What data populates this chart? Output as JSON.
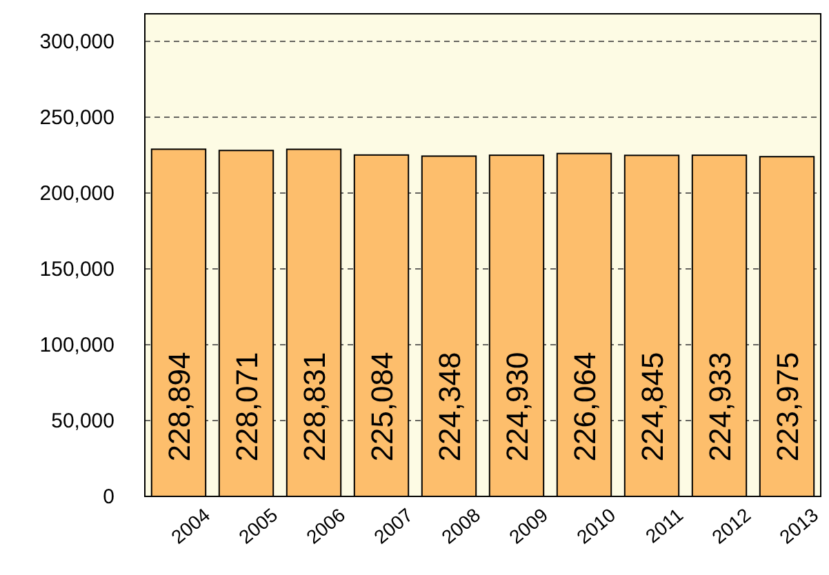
{
  "chart_data": {
    "type": "bar",
    "categories": [
      "2004",
      "2005",
      "2006",
      "2007",
      "2008",
      "2009",
      "2010",
      "2011",
      "2012",
      "2013"
    ],
    "values": [
      228894,
      228071,
      228831,
      225084,
      224348,
      224930,
      226064,
      224845,
      224933,
      223975
    ],
    "color": "#fdbe6c",
    "ylim": [
      0,
      300000
    ],
    "yticks": [
      0,
      {
        "value": 50000,
        "label": "50,000"
      },
      {
        "value": 100000,
        "label": "100,000"
      },
      {
        "value": 150000,
        "label": "150,000"
      },
      {
        "value": 200000,
        "label": "200,000"
      },
      {
        "value": 250000,
        "label": "250,000"
      },
      {
        "value": 300000,
        "label": "300,000"
      }
    ],
    "value_labels": [
      "228,894",
      "228,071",
      "228,831",
      "225,084",
      "224,348",
      "224,930",
      "226,064",
      "224,845",
      "224,933",
      "223,975"
    ],
    "grid": "y"
  }
}
